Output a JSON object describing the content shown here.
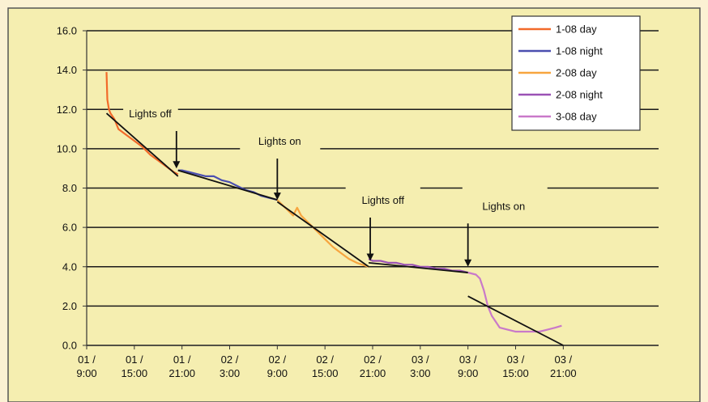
{
  "chart_data": {
    "type": "line",
    "colors": {
      "page_background": "#fbf1d3",
      "plot_background": "#f5eeb0",
      "plot_border": "#555555",
      "grid": "#1a1a1a",
      "trend": "#111111"
    },
    "grid": true,
    "legend_position": "top-right",
    "ylim": [
      0,
      16
    ],
    "y_ticks": [
      "0.0",
      "2.0",
      "4.0",
      "6.0",
      "8.0",
      "10.0",
      "12.0",
      "14.0",
      "16.0"
    ],
    "x_range_hours": [
      0,
      72
    ],
    "x_ticks": [
      {
        "t": 0,
        "line1": "01 /",
        "line2": "9:00"
      },
      {
        "t": 6,
        "line1": "01 /",
        "line2": "15:00"
      },
      {
        "t": 12,
        "line1": "01 /",
        "line2": "21:00"
      },
      {
        "t": 18,
        "line1": "02 /",
        "line2": "3:00"
      },
      {
        "t": 24,
        "line1": "02 /",
        "line2": "9:00"
      },
      {
        "t": 30,
        "line1": "02 /",
        "line2": "15:00"
      },
      {
        "t": 36,
        "line1": "02 /",
        "line2": "21:00"
      },
      {
        "t": 42,
        "line1": "03 /",
        "line2": "3:00"
      },
      {
        "t": 48,
        "line1": "03 /",
        "line2": "9:00"
      },
      {
        "t": 54,
        "line1": "03 /",
        "line2": "15:00"
      },
      {
        "t": 60,
        "line1": "03 /",
        "line2": "21:00"
      }
    ],
    "series": [
      {
        "name": "1-08 day",
        "color": "#f26a2a",
        "points": [
          [
            2.5,
            13.9
          ],
          [
            2.6,
            12.5
          ],
          [
            2.8,
            12.0
          ],
          [
            3.0,
            11.8
          ],
          [
            3.5,
            11.5
          ],
          [
            4,
            11.0
          ],
          [
            5,
            10.7
          ],
          [
            6,
            10.4
          ],
          [
            7,
            10.1
          ],
          [
            8,
            9.7
          ],
          [
            9,
            9.4
          ],
          [
            10,
            9.1
          ],
          [
            11,
            8.8
          ],
          [
            11.5,
            8.7
          ]
        ]
      },
      {
        "name": "1-08 night",
        "color": "#4b4fb0",
        "points": [
          [
            11.5,
            8.9
          ],
          [
            12,
            8.9
          ],
          [
            13,
            8.8
          ],
          [
            14,
            8.7
          ],
          [
            15,
            8.6
          ],
          [
            16,
            8.6
          ],
          [
            17,
            8.4
          ],
          [
            18,
            8.3
          ],
          [
            19,
            8.1
          ],
          [
            20,
            7.9
          ],
          [
            21,
            7.8
          ],
          [
            22,
            7.6
          ],
          [
            23,
            7.5
          ],
          [
            24,
            7.4
          ]
        ]
      },
      {
        "name": "2-08 day",
        "color": "#f7a53f",
        "points": [
          [
            24,
            7.4
          ],
          [
            25,
            7.0
          ],
          [
            26,
            6.6
          ],
          [
            26.5,
            7.0
          ],
          [
            27,
            6.6
          ],
          [
            28,
            6.2
          ],
          [
            29,
            5.8
          ],
          [
            30,
            5.4
          ],
          [
            31,
            5.0
          ],
          [
            32,
            4.7
          ],
          [
            33,
            4.4
          ],
          [
            34,
            4.2
          ],
          [
            35.5,
            4.0
          ]
        ]
      },
      {
        "name": "2-08 night",
        "color": "#9b52b5",
        "points": [
          [
            35.5,
            4.4
          ],
          [
            36,
            4.3
          ],
          [
            37,
            4.3
          ],
          [
            38,
            4.2
          ],
          [
            39,
            4.2
          ],
          [
            40,
            4.1
          ],
          [
            41,
            4.1
          ],
          [
            42,
            4.0
          ],
          [
            43,
            4.0
          ],
          [
            44,
            3.9
          ],
          [
            45,
            3.9
          ],
          [
            46,
            3.8
          ],
          [
            47,
            3.8
          ],
          [
            48,
            3.7
          ]
        ]
      },
      {
        "name": "3-08 day",
        "color": "#c979c9",
        "points": [
          [
            48,
            3.7
          ],
          [
            49,
            3.6
          ],
          [
            49.5,
            3.4
          ],
          [
            50,
            2.8
          ],
          [
            50.5,
            2.0
          ],
          [
            51,
            1.5
          ],
          [
            51.5,
            1.2
          ],
          [
            52,
            0.9
          ],
          [
            53,
            0.8
          ],
          [
            54,
            0.7
          ],
          [
            55,
            0.7
          ],
          [
            56,
            0.7
          ],
          [
            57,
            0.7
          ],
          [
            58,
            0.8
          ],
          [
            59,
            0.9
          ],
          [
            59.8,
            1.0
          ]
        ]
      }
    ],
    "trend_lines": [
      [
        [
          2.5,
          11.8
        ],
        [
          11.5,
          8.6
        ]
      ],
      [
        [
          11.5,
          8.9
        ],
        [
          24,
          7.4
        ]
      ],
      [
        [
          24,
          7.3
        ],
        [
          35.5,
          4.0
        ]
      ],
      [
        [
          35.5,
          4.2
        ],
        [
          48,
          3.7
        ]
      ],
      [
        [
          48,
          2.5
        ],
        [
          60,
          0.0
        ]
      ]
    ],
    "annotations": [
      {
        "label": "Lights off",
        "label_x": 8.0,
        "label_y": 11.8,
        "arrow_x": 11.3,
        "arrow_from": 10.9,
        "arrow_to": 9.0
      },
      {
        "label": "Lights on",
        "label_x": 24.3,
        "label_y": 10.4,
        "arrow_x": 24.0,
        "arrow_from": 9.5,
        "arrow_to": 7.4
      },
      {
        "label": "Lights off",
        "label_x": 37.3,
        "label_y": 7.4,
        "arrow_x": 35.7,
        "arrow_from": 6.5,
        "arrow_to": 4.3
      },
      {
        "label": "Lights on",
        "label_x": 52.5,
        "label_y": 7.1,
        "arrow_x": 48.0,
        "arrow_from": 6.2,
        "arrow_to": 4.0
      }
    ],
    "label_gap_lines": [
      {
        "y": 12.0,
        "gap_from": 4.6,
        "gap_to": 11.5
      },
      {
        "y": 10.0,
        "gap_from": 19.3,
        "gap_to": 29.4
      },
      {
        "y": 8.0,
        "gap_from": 32.6,
        "gap_to": 42.0
      },
      {
        "y": 8.0,
        "gap_from": 47.3,
        "gap_to": 58.0
      }
    ]
  }
}
